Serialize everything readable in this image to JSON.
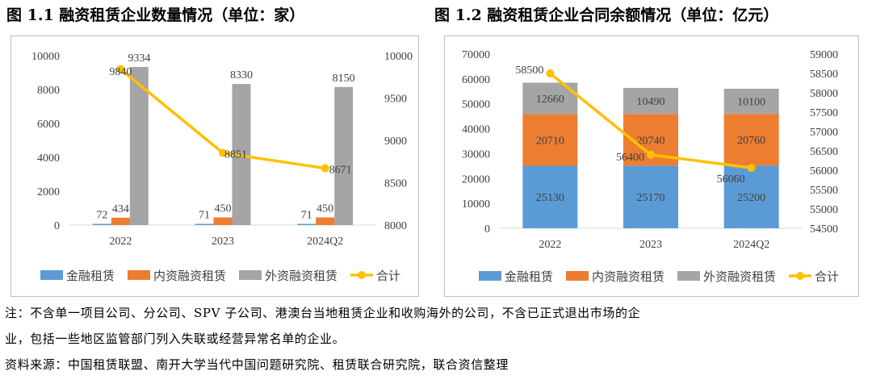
{
  "figures": {
    "left_title": "图 1.1  融资租赁企业数量情况（单位：家）",
    "right_title": "图 1.2  融资租赁企业合同余额情况（单位：亿元）"
  },
  "notes": {
    "line1": "注：不含单一项目公司、分公司、SPV 子公司、港澳台当地租赁企业和收购海外的公司，不含已正式退出市场的企",
    "line2": "业，包括一些地区监管部门列入失联或经营异常名单的企业。",
    "source": "资料来源：中国租赁联盟、南开大学当代中国问题研究院、租赁联合研究院，联合资信整理"
  },
  "colors": {
    "finance": "#5b9bd5",
    "domestic": "#ed7d31",
    "foreign": "#a5a5a5",
    "total": "#ffc000"
  },
  "chart_data": [
    {
      "type": "bar+line",
      "title": "融资租赁企业数量情况（单位：家）",
      "bar_mode": "clustered",
      "categories": [
        "2022",
        "2023",
        "2024Q2"
      ],
      "series": [
        {
          "name": "金融租赁",
          "values": [
            72,
            71,
            71
          ],
          "axis": "left"
        },
        {
          "name": "内资融资租赁",
          "values": [
            434,
            450,
            450
          ],
          "axis": "left"
        },
        {
          "name": "外资融资租赁",
          "values": [
            9334,
            8330,
            8150
          ],
          "axis": "left"
        },
        {
          "name": "合计",
          "values": [
            9840,
            8851,
            8671
          ],
          "axis": "right",
          "kind": "line"
        }
      ],
      "ylim_left": [
        0,
        10000
      ],
      "yticks_left": [
        0,
        2000,
        4000,
        6000,
        8000,
        10000
      ],
      "ylim_right": [
        8000,
        10000
      ],
      "yticks_right": [
        8000,
        8500,
        9000,
        9500,
        10000
      ],
      "legend": "bottom"
    },
    {
      "type": "bar+line",
      "title": "融资租赁企业合同余额情况（单位：亿元）",
      "bar_mode": "stacked",
      "categories": [
        "2022",
        "2023",
        "2024Q2"
      ],
      "series": [
        {
          "name": "金融租赁",
          "values": [
            25130,
            25170,
            25200
          ],
          "axis": "left"
        },
        {
          "name": "内资融资租赁",
          "values": [
            20710,
            20740,
            20760
          ],
          "axis": "left"
        },
        {
          "name": "外资融资租赁",
          "values": [
            12660,
            10490,
            10100
          ],
          "axis": "left"
        },
        {
          "name": "合计",
          "values": [
            58500,
            56400,
            56060
          ],
          "axis": "right",
          "kind": "line"
        }
      ],
      "ylim_left": [
        0,
        70000
      ],
      "yticks_left": [
        0,
        10000,
        20000,
        30000,
        40000,
        50000,
        60000,
        70000
      ],
      "ylim_right": [
        54500,
        59000
      ],
      "yticks_right": [
        54500,
        55000,
        55500,
        56000,
        56500,
        57000,
        57500,
        58000,
        58500,
        59000
      ],
      "legend": "bottom"
    }
  ]
}
